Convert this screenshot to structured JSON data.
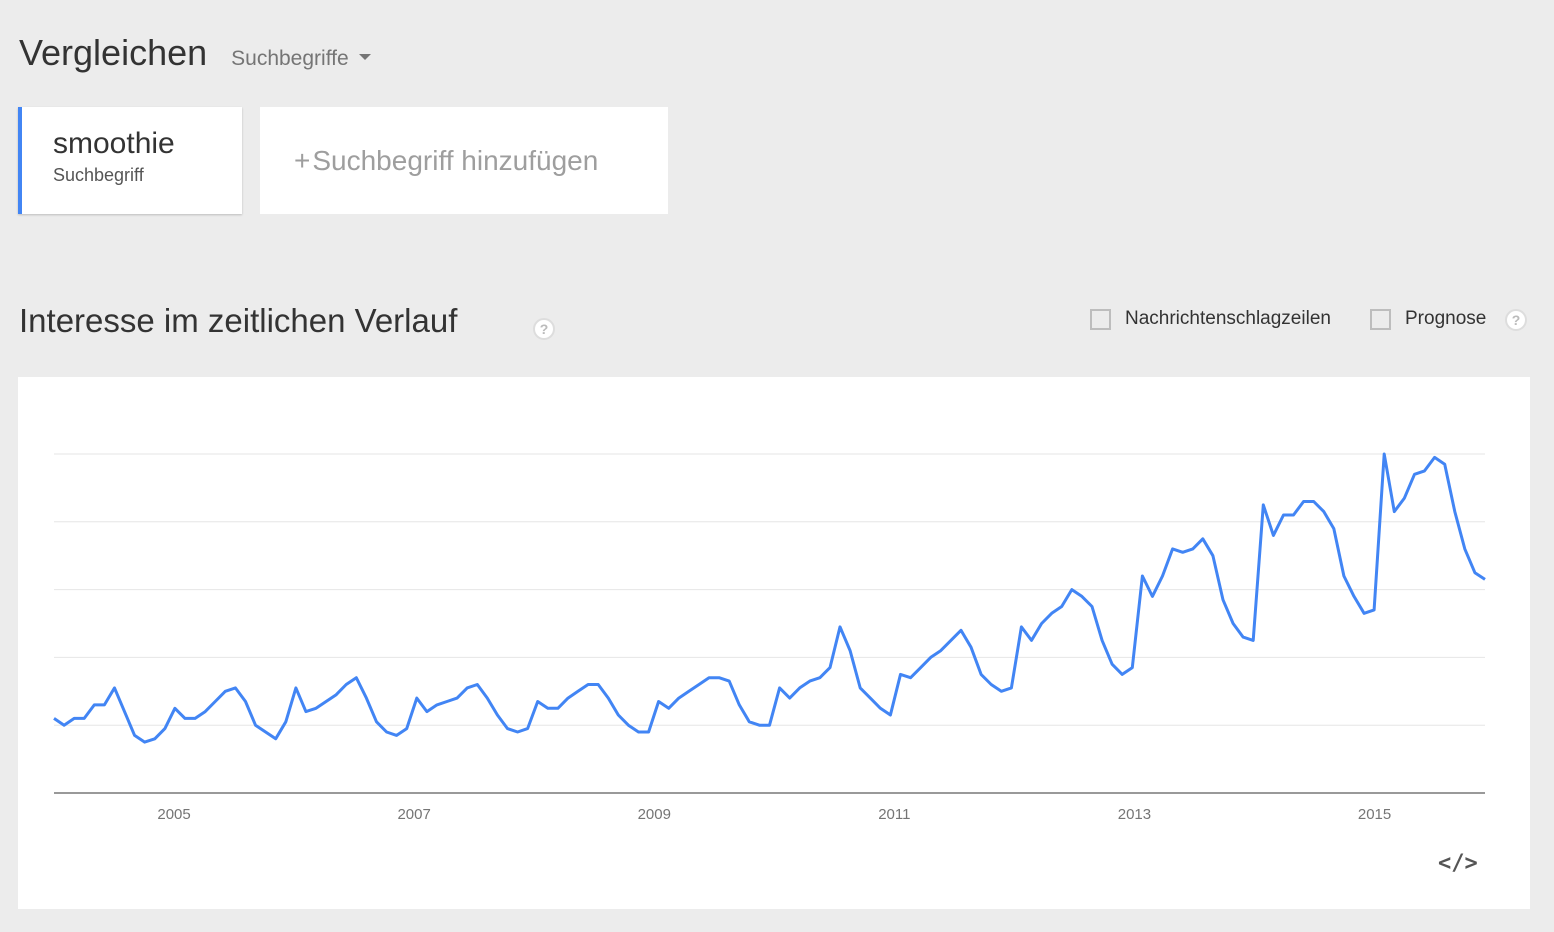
{
  "header": {
    "title": "Vergleichen",
    "compare_type": "Suchbegriffe",
    "compare_icon": "caret-down-icon"
  },
  "term": {
    "name": "smoothie",
    "type": "Suchbegriff",
    "accent": "#4285f4"
  },
  "add_term": {
    "plus": "+",
    "label": "Suchbegriff hinzufügen"
  },
  "section": {
    "title": "Interesse im zeitlichen Verlauf",
    "help_icon": "help-icon",
    "checkboxes": [
      {
        "label": "Nachrichtenschlagzeilen",
        "checked": false
      },
      {
        "label": "Prognose",
        "checked": false
      }
    ]
  },
  "chart_data": {
    "type": "line",
    "line_color": "#4285f4",
    "grid": true,
    "xlim": [
      2004.0,
      2015.92
    ],
    "ylim": [
      0,
      100
    ],
    "x_ticks": [
      "2005",
      "2007",
      "2009",
      "2011",
      "2013",
      "2015"
    ],
    "x_tick_values": [
      2005,
      2007,
      2009,
      2011,
      2013,
      2015
    ],
    "series": [
      {
        "values": [
          22,
          20,
          22,
          22,
          26,
          26,
          31,
          24,
          17,
          15,
          16,
          19,
          25,
          22,
          22,
          24,
          27,
          30,
          31,
          27,
          20,
          18,
          16,
          21,
          31,
          24,
          25,
          27,
          29,
          32,
          34,
          28,
          21,
          18,
          17,
          19,
          28,
          24,
          26,
          27,
          28,
          31,
          32,
          28,
          23,
          19,
          18,
          19,
          27,
          25,
          25,
          28,
          30,
          32,
          32,
          28,
          23,
          20,
          18,
          18,
          27,
          25,
          28,
          30,
          32,
          34,
          34,
          33,
          26,
          21,
          20,
          20,
          31,
          28,
          31,
          33,
          34,
          37,
          49,
          42,
          31,
          28,
          25,
          23,
          35,
          34,
          37,
          40,
          42,
          45,
          48,
          43,
          35,
          32,
          30,
          31,
          49,
          45,
          50,
          53,
          55,
          60,
          58,
          55,
          45,
          38,
          35,
          37,
          64,
          58,
          64,
          72,
          71,
          72,
          75,
          70,
          57,
          50,
          46,
          45,
          85,
          76,
          82,
          82,
          86,
          86,
          83,
          78,
          64,
          58,
          53,
          54,
          100,
          83,
          87,
          94,
          95,
          99,
          97,
          83,
          72,
          65,
          63
        ]
      }
    ]
  },
  "embed": {
    "label": "</>"
  }
}
